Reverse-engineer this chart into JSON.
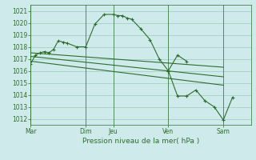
{
  "title": "Pression niveau de la mer( hPa )",
  "bg_color": "#ceeaea",
  "grid_color": "#99ccbb",
  "line_color": "#2d6e2d",
  "ylim": [
    1011.5,
    1021.5
  ],
  "xlim": [
    0,
    24
  ],
  "xtick_labels": [
    "Mar",
    "Dim",
    "Jeu",
    "Ven",
    "Sam"
  ],
  "xtick_positions": [
    0,
    6,
    9,
    15,
    21
  ],
  "vlines": [
    0,
    6,
    9,
    15,
    21
  ],
  "series1_x": [
    0,
    0.5,
    1,
    1.5,
    2,
    2.5,
    3,
    3.5,
    4,
    5,
    6,
    7,
    8,
    9,
    9.5,
    10,
    10.5,
    11,
    12,
    13,
    14,
    15,
    16,
    17
  ],
  "series1_y": [
    1016.6,
    1017.3,
    1017.5,
    1017.6,
    1017.5,
    1017.8,
    1018.5,
    1018.4,
    1018.3,
    1018.0,
    1018.0,
    1019.9,
    1020.7,
    1020.7,
    1020.6,
    1020.6,
    1020.4,
    1020.3,
    1019.5,
    1018.6,
    1017.0,
    1016.0,
    1017.3,
    1016.8
  ],
  "trend1_x": [
    0,
    21
  ],
  "trend1_y": [
    1017.5,
    1016.3
  ],
  "trend2_x": [
    0,
    21
  ],
  "trend2_y": [
    1017.2,
    1015.5
  ],
  "trend3_x": [
    0,
    21
  ],
  "trend3_y": [
    1016.8,
    1014.8
  ],
  "series2_x": [
    15,
    16,
    17,
    18,
    19,
    20,
    21,
    22
  ],
  "series2_y": [
    1016.0,
    1013.9,
    1013.9,
    1014.4,
    1013.5,
    1013.0,
    1011.9,
    1013.8
  ]
}
